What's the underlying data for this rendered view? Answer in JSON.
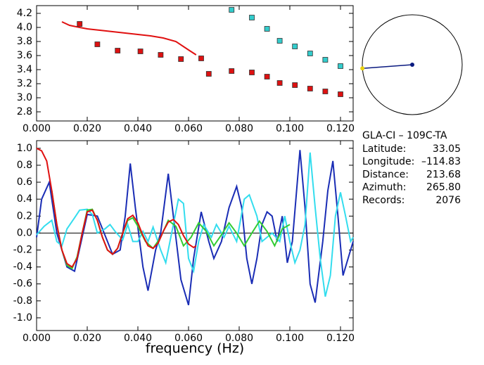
{
  "chart_data": [
    {
      "type": "scatter",
      "xlim": [
        0,
        0.125
      ],
      "ylim": [
        2.67,
        4.31
      ],
      "xticks": [
        {
          "value": 0,
          "label": "0.000"
        },
        {
          "value": 0.02,
          "label": "0.020"
        },
        {
          "value": 0.04,
          "label": "0.040"
        },
        {
          "value": 0.06,
          "label": "0.060"
        },
        {
          "value": 0.08,
          "label": "0.080"
        },
        {
          "value": 0.1,
          "label": "0.100"
        },
        {
          "value": 0.12,
          "label": "0.120"
        }
      ],
      "yticks": [
        {
          "value": 2.8,
          "label": "2.8"
        },
        {
          "value": 3.0,
          "label": "3.0"
        },
        {
          "value": 3.2,
          "label": "3.2"
        },
        {
          "value": 3.4,
          "label": "3.4"
        },
        {
          "value": 3.6,
          "label": "3.6"
        },
        {
          "value": 3.8,
          "label": "3.8"
        },
        {
          "value": 4.0,
          "label": "4.0"
        },
        {
          "value": 4.2,
          "label": "4.2"
        }
      ],
      "series": [
        {
          "mode": "line",
          "color": "#e01010",
          "x": [
            0.01,
            0.013,
            0.017,
            0.02,
            0.025,
            0.03,
            0.035,
            0.04,
            0.045,
            0.05,
            0.055,
            0.06,
            0.063
          ],
          "values": [
            4.08,
            4.03,
            4.0,
            3.98,
            3.96,
            3.94,
            3.92,
            3.9,
            3.88,
            3.85,
            3.8,
            3.68,
            3.61
          ]
        },
        {
          "mode": "markers",
          "color": "#dd1111",
          "x": [
            0.017,
            0.024,
            0.032,
            0.041,
            0.049,
            0.057,
            0.065,
            0.068,
            0.077,
            0.085,
            0.091,
            0.096,
            0.102,
            0.108,
            0.114,
            0.12
          ],
          "values": [
            4.05,
            3.76,
            3.67,
            3.66,
            3.61,
            3.55,
            3.56,
            3.34,
            3.38,
            3.36,
            3.3,
            3.21,
            3.18,
            3.13,
            3.09,
            3.05
          ]
        },
        {
          "mode": "markers",
          "color": "#33cccc",
          "x": [
            0.077,
            0.085,
            0.091,
            0.096,
            0.102,
            0.108,
            0.114,
            0.12
          ],
          "values": [
            4.25,
            4.14,
            3.98,
            3.81,
            3.73,
            3.63,
            3.54,
            3.45
          ]
        }
      ]
    },
    {
      "type": "line",
      "x_label": "frequency (Hz)",
      "xlim": [
        0,
        0.125
      ],
      "ylim": [
        -1.15,
        1.09
      ],
      "xticks": [
        {
          "value": 0,
          "label": "0.000"
        },
        {
          "value": 0.02,
          "label": "0.020"
        },
        {
          "value": 0.04,
          "label": "0.040"
        },
        {
          "value": 0.06,
          "label": "0.060"
        },
        {
          "value": 0.08,
          "label": "0.080"
        },
        {
          "value": 0.1,
          "label": "0.100"
        },
        {
          "value": 0.12,
          "label": "0.120"
        }
      ],
      "yticks": [
        {
          "value": -1.0,
          "label": "-1.0"
        },
        -0.8,
        -0.6,
        -0.4,
        -0.2,
        {
          "value": 0,
          "label": "0.0"
        },
        0.2,
        0.4,
        0.6,
        0.8,
        {
          "value": 1.0,
          "label": "1.0"
        }
      ],
      "zero_line": true,
      "series": [
        {
          "color": "#1a2db5",
          "x": [
            0.0,
            0.002,
            0.005,
            0.008,
            0.012,
            0.015,
            0.02,
            0.024,
            0.03,
            0.033,
            0.035,
            0.037,
            0.039,
            0.042,
            0.044,
            0.047,
            0.049,
            0.052,
            0.054,
            0.057,
            0.06,
            0.062,
            0.065,
            0.068,
            0.07,
            0.073,
            0.076,
            0.079,
            0.081,
            0.083,
            0.085,
            0.087,
            0.089,
            0.091,
            0.093,
            0.095,
            0.097,
            0.099,
            0.101,
            0.104,
            0.106,
            0.108,
            0.11,
            0.113,
            0.115,
            0.117,
            0.119,
            0.121,
            0.123,
            0.125
          ],
          "values": [
            -0.05,
            0.4,
            0.6,
            0.0,
            -0.4,
            -0.45,
            0.22,
            0.2,
            -0.25,
            -0.2,
            0.2,
            0.82,
            0.3,
            -0.4,
            -0.68,
            -0.2,
            0.0,
            0.7,
            0.2,
            -0.55,
            -0.85,
            -0.3,
            0.25,
            -0.1,
            -0.3,
            -0.1,
            0.3,
            0.55,
            0.3,
            -0.3,
            -0.6,
            -0.3,
            0.1,
            0.25,
            0.2,
            -0.1,
            0.2,
            -0.35,
            -0.1,
            0.98,
            0.3,
            -0.6,
            -0.82,
            -0.1,
            0.5,
            0.85,
            0.2,
            -0.5,
            -0.3,
            -0.1
          ]
        },
        {
          "color": "#33ddee",
          "x": [
            0.0,
            0.003,
            0.006,
            0.008,
            0.01,
            0.012,
            0.015,
            0.017,
            0.02,
            0.022,
            0.024,
            0.027,
            0.029,
            0.031,
            0.034,
            0.036,
            0.038,
            0.04,
            0.042,
            0.044,
            0.046,
            0.049,
            0.051,
            0.054,
            0.056,
            0.058,
            0.06,
            0.062,
            0.064,
            0.066,
            0.069,
            0.071,
            0.074,
            0.076,
            0.079,
            0.082,
            0.084,
            0.087,
            0.089,
            0.091,
            0.093,
            0.096,
            0.098,
            0.1,
            0.102,
            0.104,
            0.106,
            0.108,
            0.11,
            0.112,
            0.114,
            0.116,
            0.118,
            0.12,
            0.122,
            0.124,
            0.125
          ],
          "values": [
            -0.02,
            0.08,
            0.15,
            -0.1,
            -0.15,
            0.05,
            0.18,
            0.27,
            0.28,
            0.22,
            0.0,
            0.05,
            0.1,
            0.02,
            -0.08,
            0.1,
            -0.1,
            -0.1,
            0.02,
            -0.1,
            0.07,
            -0.2,
            -0.35,
            0.1,
            0.4,
            0.35,
            -0.3,
            -0.45,
            -0.1,
            0.1,
            -0.05,
            0.1,
            -0.05,
            0.08,
            -0.1,
            0.4,
            0.45,
            0.2,
            -0.1,
            -0.05,
            0.0,
            -0.1,
            0.2,
            -0.1,
            -0.35,
            -0.2,
            0.1,
            0.95,
            0.3,
            -0.3,
            -0.75,
            -0.5,
            0.2,
            0.48,
            0.2,
            -0.1,
            -0.05
          ]
        },
        {
          "color": "#33cc33",
          "x": [
            0.006,
            0.008,
            0.01,
            0.012,
            0.014,
            0.016,
            0.018,
            0.02,
            0.022,
            0.024,
            0.026,
            0.028,
            0.03,
            0.032,
            0.034,
            0.036,
            0.038,
            0.04,
            0.043,
            0.046,
            0.049,
            0.052,
            0.055,
            0.058,
            0.061,
            0.064,
            0.067,
            0.07,
            0.073,
            0.076,
            0.079,
            0.082,
            0.085,
            0.088,
            0.091,
            0.094,
            0.097,
            0.1
          ],
          "values": [
            0.5,
            0.1,
            -0.2,
            -0.38,
            -0.42,
            -0.28,
            0.0,
            0.27,
            0.28,
            0.15,
            -0.05,
            -0.2,
            -0.25,
            -0.18,
            0.0,
            0.15,
            0.18,
            0.08,
            -0.1,
            -0.18,
            -0.05,
            0.15,
            0.08,
            -0.15,
            -0.05,
            0.12,
            0.02,
            -0.15,
            -0.02,
            0.12,
            0.0,
            -0.15,
            0.0,
            0.14,
            0.02,
            -0.15,
            0.05,
            0.1
          ]
        },
        {
          "color": "#e01010",
          "x": [
            0.0,
            0.002,
            0.004,
            0.006,
            0.008,
            0.01,
            0.012,
            0.014,
            0.016,
            0.018,
            0.02,
            0.022,
            0.024,
            0.026,
            0.028,
            0.03,
            0.032,
            0.034,
            0.036,
            0.038,
            0.04,
            0.042,
            0.044,
            0.046,
            0.048,
            0.05,
            0.052,
            0.054,
            0.056,
            0.058,
            0.06,
            0.062,
            0.063
          ],
          "values": [
            1.0,
            0.97,
            0.85,
            0.5,
            0.1,
            -0.2,
            -0.36,
            -0.4,
            -0.3,
            0.0,
            0.25,
            0.27,
            0.15,
            -0.05,
            -0.2,
            -0.25,
            -0.18,
            0.0,
            0.17,
            0.21,
            0.12,
            -0.03,
            -0.15,
            -0.18,
            -0.12,
            0.02,
            0.13,
            0.16,
            0.1,
            -0.03,
            -0.13,
            -0.17,
            -0.15
          ]
        }
      ]
    }
  ],
  "info": {
    "station": "GLA-CI  –  109C-TA",
    "rows": [
      [
        "Latitude:",
        "33.05"
      ],
      [
        "Longitude:",
        "–114.83"
      ],
      [
        "Distance:",
        "213.68"
      ],
      [
        "Azimuth:",
        "265.80"
      ],
      [
        "Records:",
        "2076"
      ]
    ]
  }
}
